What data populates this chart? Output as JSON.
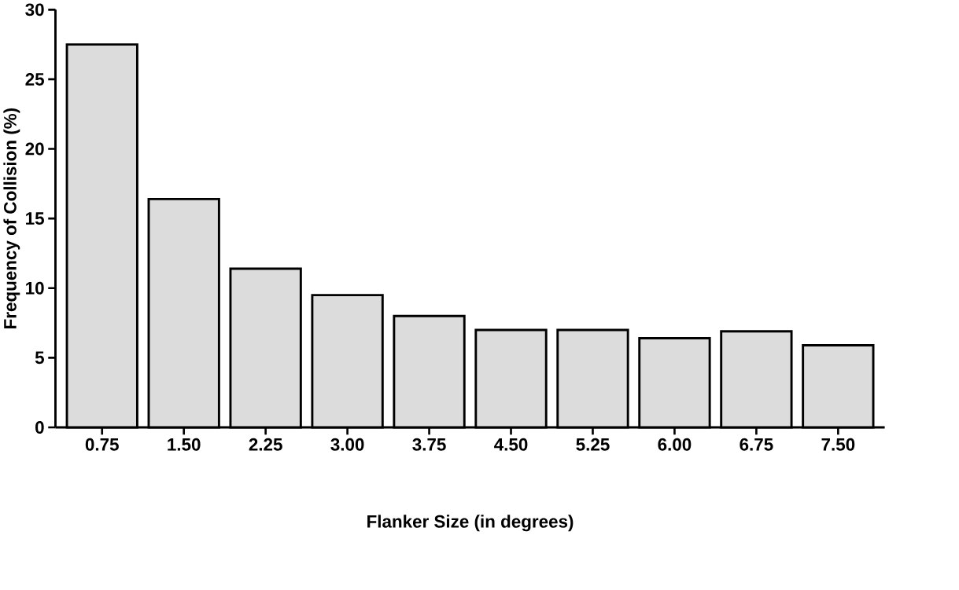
{
  "chart_data": {
    "type": "bar",
    "xlabel": "Flanker Size (in degrees)",
    "ylabel": "Frequency of Collision (%)",
    "categories": [
      "0.75",
      "1.50",
      "2.25",
      "3.00",
      "3.75",
      "4.50",
      "5.25",
      "6.00",
      "6.75",
      "7.50"
    ],
    "values": [
      27.5,
      16.4,
      11.4,
      9.5,
      8.0,
      7.0,
      7.0,
      6.4,
      6.9,
      5.9
    ],
    "color": "#dcdcdc",
    "ylim": [
      0,
      30
    ],
    "yticks": [
      0,
      5,
      10,
      15,
      20,
      25,
      30
    ],
    "grid": false
  }
}
